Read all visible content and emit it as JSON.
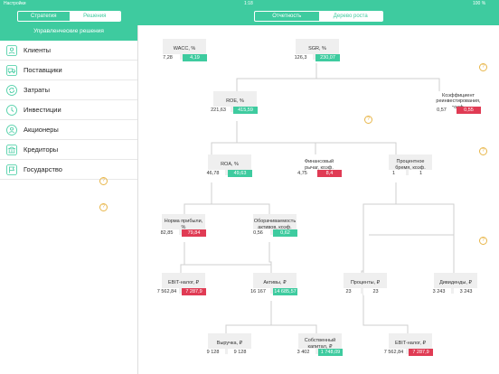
{
  "status_bar": {
    "carrier": "Настройки",
    "time": "1:18",
    "battery": "100 %"
  },
  "sidebar": {
    "segments": [
      "Стратегия",
      "Решения"
    ],
    "title": "Управленческие решения",
    "items": [
      {
        "label": "Клиенты",
        "icon": "users-icon"
      },
      {
        "label": "Поставщики",
        "icon": "truck-icon"
      },
      {
        "label": "Затраты",
        "icon": "refresh-icon"
      },
      {
        "label": "Инвестиции",
        "icon": "coins-icon"
      },
      {
        "label": "Акционеры",
        "icon": "shareholders-icon"
      },
      {
        "label": "Кредиторы",
        "icon": "bank-icon"
      },
      {
        "label": "Государство",
        "icon": "flag-icon"
      }
    ]
  },
  "main": {
    "tabs": [
      "Отчетность",
      "Дерево роста"
    ]
  },
  "help_glyph": "?",
  "colors": {
    "accent": "#3ecb9f",
    "negative": "#e03b54",
    "help": "#e8b64a"
  },
  "nodes": {
    "wacc": {
      "label": "WACC, %",
      "a": "7,28",
      "b": "4,19",
      "tone": "g"
    },
    "sgr": {
      "label": "SGR, %",
      "a": "126,3",
      "b": "230,07",
      "tone": "g"
    },
    "roe": {
      "label": "ROE, %",
      "a": "221,63",
      "b": "415,59",
      "tone": "g"
    },
    "reinvest": {
      "label": "Коэффициент реинвестирования, коэф.",
      "a": "0,57",
      "b": "0,55",
      "tone": "r"
    },
    "roa": {
      "label": "ROA, %",
      "a": "46,78",
      "b": "49,63",
      "tone": "g"
    },
    "leverage": {
      "label": "Финансовый рычаг, коэф.",
      "a": "4,75",
      "b": "8,4",
      "tone": "r"
    },
    "interest_burden": {
      "label": "Процентное бремя, коэф.",
      "a": "1",
      "b": "1",
      "tone": "w"
    },
    "profit_margin": {
      "label": "Норма прибыли, %",
      "a": "82,85",
      "b": "79,84",
      "tone": "r"
    },
    "turnover": {
      "label": "Оборачиваемость активов, коэф.",
      "a": "0,56",
      "b": "0,62",
      "tone": "g"
    },
    "ebit_tax": {
      "label": "EBIT-налог, ₽",
      "a": "7 562,84",
      "b": "7 287,9",
      "tone": "r"
    },
    "assets": {
      "label": "Активы, ₽",
      "a": "16 167",
      "b": "14 685,57",
      "tone": "g"
    },
    "interest": {
      "label": "Проценты, ₽",
      "a": "23",
      "b": "23",
      "tone": "w"
    },
    "dividends": {
      "label": "Дивиденды, ₽",
      "a": "3 243",
      "b": "3 243",
      "tone": "w"
    },
    "revenue": {
      "label": "Выручка, ₽",
      "a": "9 128",
      "b": "9 128",
      "tone": "w"
    },
    "equity": {
      "label": "Собственный капитал, ₽",
      "a": "3 402",
      "b": "1 748,09",
      "tone": "g"
    },
    "ebit_tax2": {
      "label": "EBIT-налог, ₽",
      "a": "7 562,84",
      "b": "7 287,9",
      "tone": "r"
    }
  }
}
